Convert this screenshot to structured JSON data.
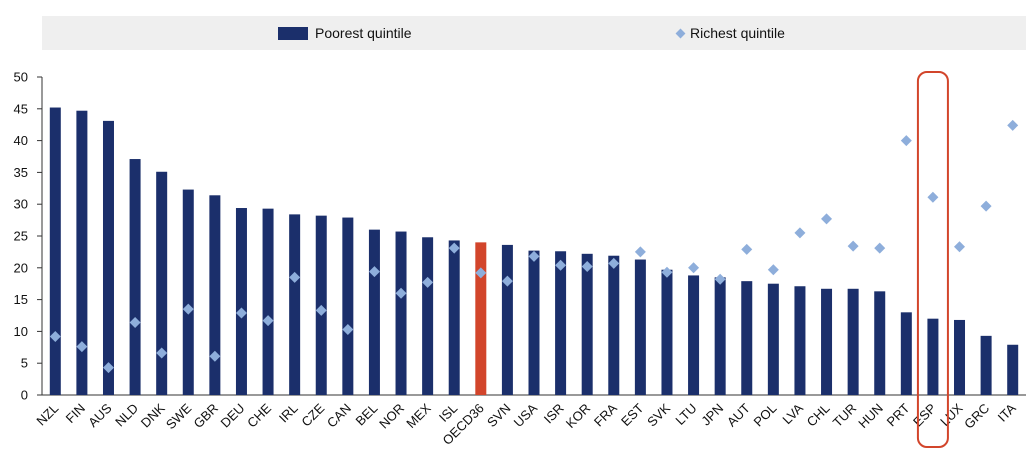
{
  "chart_data": {
    "type": "bar",
    "title": "",
    "xlabel": "",
    "ylabel": "",
    "ylim": [
      0,
      50
    ],
    "yticks": [
      0,
      5,
      10,
      15,
      20,
      25,
      30,
      35,
      40,
      45,
      50
    ],
    "grid": false,
    "legend_placement": "top",
    "categories": [
      "NZL",
      "FIN",
      "AUS",
      "NLD",
      "DNK",
      "SWE",
      "GBR",
      "DEU",
      "CHE",
      "IRL",
      "CZE",
      "CAN",
      "BEL",
      "NOR",
      "MEX",
      "ISL",
      "OECD36",
      "SVN",
      "USA",
      "ISR",
      "KOR",
      "FRA",
      "EST",
      "SVK",
      "LTU",
      "JPN",
      "AUT",
      "POL",
      "LVA",
      "CHL",
      "TUR",
      "HUN",
      "PRT",
      "ESP",
      "LUX",
      "GRC",
      "ITA"
    ],
    "series": [
      {
        "name": "Poorest quintile",
        "kind": "bar",
        "color": "#1b2f6b",
        "highlight": {
          "OECD36": "#d2452b"
        },
        "values": [
          45.2,
          44.7,
          43.1,
          37.1,
          35.1,
          32.3,
          31.4,
          29.4,
          29.3,
          28.4,
          28.2,
          27.9,
          26.0,
          25.7,
          24.8,
          24.3,
          24.0,
          23.6,
          22.7,
          22.6,
          22.2,
          21.9,
          21.3,
          19.7,
          18.8,
          18.5,
          17.9,
          17.5,
          17.1,
          16.7,
          16.7,
          16.3,
          13.0,
          12.0,
          11.8,
          9.3,
          7.9
        ]
      },
      {
        "name": "Richest quintile",
        "kind": "marker",
        "color": "#8eaedb",
        "values": [
          9.2,
          7.6,
          4.3,
          11.4,
          6.6,
          13.5,
          6.1,
          12.9,
          11.7,
          18.5,
          13.3,
          10.3,
          19.4,
          16.0,
          17.7,
          23.1,
          19.2,
          17.9,
          21.8,
          20.4,
          20.2,
          20.7,
          22.5,
          19.3,
          20.0,
          18.2,
          22.9,
          19.7,
          25.5,
          27.7,
          23.4,
          23.1,
          40.0,
          31.1,
          23.3,
          29.7,
          42.4
        ]
      }
    ],
    "highlight_box": {
      "category": "ESP",
      "color": "#d2452b"
    }
  }
}
